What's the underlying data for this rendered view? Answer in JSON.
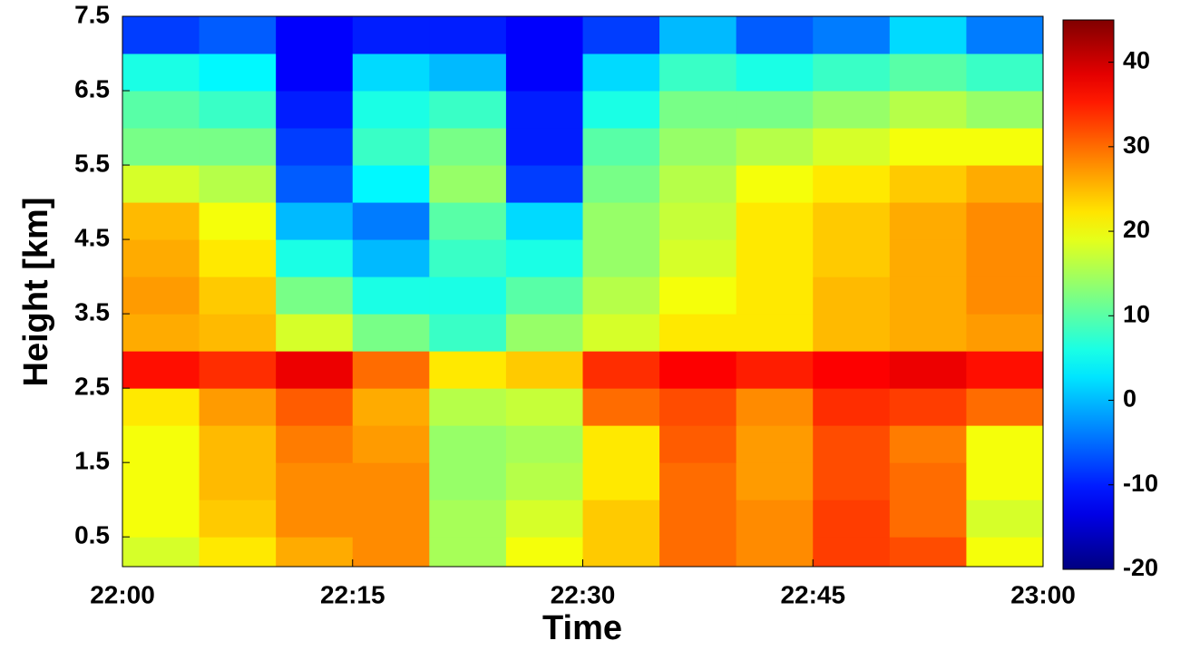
{
  "chart_data": {
    "type": "heatmap",
    "xlabel": "Time",
    "ylabel": "Height [km]",
    "xlim": [
      "22:00",
      "23:00"
    ],
    "xticks": [
      "22:00",
      "22:15",
      "22:30",
      "22:45",
      "23:00"
    ],
    "ylim": [
      0.1,
      7.5
    ],
    "yticks": [
      0.5,
      1.5,
      2.5,
      3.5,
      4.5,
      5.5,
      6.5,
      7.5
    ],
    "clim": [
      -20,
      45
    ],
    "cticks": [
      -20,
      -10,
      0,
      10,
      20,
      30,
      40
    ],
    "colormap": "jet",
    "x_edges": [
      "22:00",
      "22:05",
      "22:10",
      "22:15",
      "22:20",
      "22:25",
      "22:30",
      "22:35",
      "22:40",
      "22:45",
      "22:50",
      "22:55",
      "23:00"
    ],
    "y_edges": [
      0.1,
      0.5,
      1,
      1.5,
      2,
      2.5,
      3,
      3.5,
      4,
      4.5,
      5,
      5.5,
      6,
      6.5,
      7,
      7.5
    ],
    "z": [
      [
        18,
        22,
        26,
        28,
        15,
        20,
        24,
        30,
        28,
        33,
        32,
        20
      ],
      [
        20,
        24,
        28,
        28,
        15,
        18,
        24,
        30,
        28,
        33,
        30,
        18
      ],
      [
        20,
        25,
        28,
        28,
        14,
        16,
        22,
        30,
        27,
        32,
        30,
        20
      ],
      [
        20,
        25,
        29,
        27,
        14,
        15,
        22,
        31,
        27,
        32,
        29,
        20
      ],
      [
        22,
        27,
        31,
        26,
        16,
        17,
        30,
        32,
        28,
        34,
        33,
        30
      ],
      [
        36,
        34,
        38,
        30,
        22,
        24,
        34,
        37,
        35,
        37,
        38,
        36
      ],
      [
        26,
        25,
        18,
        12,
        8,
        14,
        18,
        22,
        22,
        25,
        26,
        27
      ],
      [
        27,
        24,
        12,
        6,
        6,
        10,
        16,
        20,
        22,
        25,
        26,
        28
      ],
      [
        26,
        22,
        6,
        0,
        8,
        6,
        14,
        18,
        22,
        24,
        26,
        28
      ],
      [
        25,
        20,
        0,
        -4,
        10,
        2,
        14,
        17,
        22,
        24,
        26,
        28
      ],
      [
        18,
        16,
        -6,
        4,
        14,
        -8,
        12,
        16,
        20,
        22,
        24,
        26
      ],
      [
        12,
        12,
        -8,
        8,
        12,
        -10,
        10,
        14,
        16,
        18,
        20,
        20
      ],
      [
        10,
        8,
        -10,
        6,
        8,
        -10,
        6,
        12,
        12,
        14,
        16,
        14
      ],
      [
        6,
        4,
        -12,
        2,
        0,
        -12,
        2,
        8,
        6,
        8,
        10,
        8
      ],
      [
        -8,
        -6,
        -12,
        -10,
        -10,
        -12,
        -8,
        0,
        -6,
        -4,
        2,
        -4
      ]
    ]
  }
}
